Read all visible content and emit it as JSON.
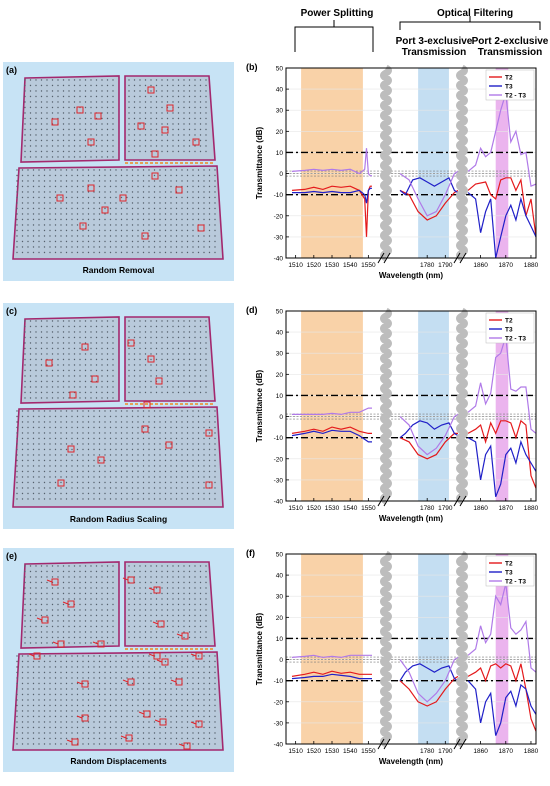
{
  "headers": {
    "power_splitting": "Power Splitting",
    "optical_filtering": "Optical Filtering",
    "port3_line1": "Port 3-exclusive",
    "port3_line2": "Transmission",
    "port2_line1": "Port 2-exclusive",
    "port2_line2": "Transmission"
  },
  "panels_left": [
    {
      "label": "(a)",
      "caption": "Random Removal"
    },
    {
      "label": "(c)",
      "caption": "Random Radius Scaling"
    },
    {
      "label": "(e)",
      "caption": "Random Displacements"
    }
  ],
  "panels_right": [
    {
      "label": "(b)"
    },
    {
      "label": "(d)"
    },
    {
      "label": "(f)"
    }
  ],
  "colors": {
    "left_bg": "#c7e3f5",
    "frame": "#a3286e",
    "orange_band": "#f9d2a8",
    "blue_band": "#c4def2",
    "pink_band": "#ebb4ee",
    "T2": "#e41a1c",
    "T3": "#2020c8",
    "T2_T3": "#b07ae8"
  },
  "chart_data": [
    {
      "type": "line",
      "panel": "(b)",
      "xlabel": "Wavelength (nm)",
      "ylabel": "Transmittance (dB)",
      "ylim": [
        -40,
        50
      ],
      "yticks": [
        -40,
        -30,
        -20,
        -10,
        0,
        10,
        20,
        30,
        40,
        50
      ],
      "xticks": [
        "1510",
        "1520",
        "1530",
        "1540",
        "1550",
        "1780",
        "1790",
        "1860",
        "1870",
        "1880"
      ],
      "x_segments": [
        [
          1508,
          1552
        ],
        [
          1765,
          1797
        ],
        [
          1855,
          1882
        ]
      ],
      "reference_lines": [
        10,
        -10
      ],
      "legend": [
        "T2",
        "T3",
        "T2 - T3"
      ],
      "series": [
        {
          "name": "T2",
          "x": [
            1508,
            1515,
            1520,
            1525,
            1530,
            1535,
            1540,
            1545,
            1548,
            1549,
            1550,
            1551,
            1552,
            1765,
            1770,
            1775,
            1780,
            1785,
            1790,
            1795,
            1797,
            1855,
            1858,
            1862,
            1864,
            1866,
            1868,
            1870,
            1872,
            1874,
            1876,
            1878,
            1880,
            1882
          ],
          "y": [
            -8,
            -7.5,
            -6.5,
            -7.5,
            -6,
            -6.5,
            -6,
            -8,
            -12,
            -30,
            -8,
            -6,
            -6,
            -8,
            -10,
            -18,
            -22,
            -20,
            -14,
            -9,
            -8,
            -8,
            -5,
            -4,
            -10,
            -12,
            -3,
            -2,
            -2,
            -8,
            -3,
            -20,
            -12,
            -30
          ]
        },
        {
          "name": "T3",
          "x": [
            1508,
            1515,
            1520,
            1525,
            1530,
            1535,
            1540,
            1545,
            1548,
            1549,
            1550,
            1551,
            1552,
            1765,
            1768,
            1772,
            1776,
            1780,
            1784,
            1788,
            1792,
            1795,
            1797,
            1855,
            1858,
            1860,
            1862,
            1864,
            1866,
            1868,
            1870,
            1872,
            1874,
            1876,
            1878,
            1880,
            1882
          ],
          "y": [
            -9,
            -9,
            -8.5,
            -9,
            -8.5,
            -9,
            -9,
            -8,
            -10,
            -14,
            -8,
            -7,
            -7,
            -8,
            -10,
            -3,
            -2,
            -4,
            -6,
            -4,
            -2,
            -8,
            -9,
            -9,
            -12,
            -28,
            -18,
            -12,
            -40,
            -30,
            -20,
            -15,
            -22,
            -12,
            -20,
            -25,
            -30
          ]
        },
        {
          "name": "T2 - T3",
          "x": [
            1508,
            1515,
            1520,
            1525,
            1530,
            1535,
            1540,
            1545,
            1548,
            1549,
            1550,
            1551,
            1552,
            1765,
            1770,
            1775,
            1780,
            1785,
            1790,
            1795,
            1797,
            1855,
            1858,
            1860,
            1862,
            1864,
            1866,
            1868,
            1870,
            1872,
            1874,
            1876,
            1878,
            1880,
            1882
          ],
          "y": [
            1,
            1.5,
            2,
            1.5,
            2,
            1.5,
            2,
            0,
            2,
            12,
            0,
            -1,
            -1,
            0,
            -3,
            -12,
            -20,
            -18,
            -10,
            0,
            1,
            1,
            4,
            12,
            8,
            10,
            20,
            30,
            38,
            15,
            20,
            9,
            10,
            -6,
            -5
          ]
        }
      ]
    },
    {
      "type": "line",
      "panel": "(d)",
      "xlabel": "Wavelength (nm)",
      "ylabel": "Transmittance (dB)",
      "ylim": [
        -40,
        50
      ],
      "yticks": [
        -40,
        -30,
        -20,
        -10,
        0,
        10,
        20,
        30,
        40,
        50
      ],
      "xticks": [
        "1510",
        "1520",
        "1530",
        "1540",
        "1550",
        "1780",
        "1790",
        "1860",
        "1870",
        "1880"
      ],
      "x_segments": [
        [
          1508,
          1552
        ],
        [
          1765,
          1797
        ],
        [
          1855,
          1882
        ]
      ],
      "reference_lines": [
        10,
        -10
      ],
      "legend": [
        "T2",
        "T3",
        "T2 - T3"
      ],
      "series": [
        {
          "name": "T2",
          "x": [
            1508,
            1515,
            1520,
            1525,
            1530,
            1535,
            1540,
            1545,
            1550,
            1552,
            1765,
            1770,
            1775,
            1780,
            1785,
            1790,
            1795,
            1797,
            1855,
            1858,
            1860,
            1862,
            1864,
            1866,
            1868,
            1870,
            1872,
            1874,
            1876,
            1878,
            1880,
            1882
          ],
          "y": [
            -8,
            -7,
            -6,
            -7,
            -5,
            -6,
            -5,
            -7,
            -8,
            -8,
            -10,
            -12,
            -18,
            -20,
            -18,
            -12,
            -8,
            -8,
            -8,
            -6,
            -4,
            -12,
            -3,
            -8,
            -2,
            -2,
            -3,
            -10,
            -2,
            -4,
            -28,
            -34
          ]
        },
        {
          "name": "T3",
          "x": [
            1508,
            1515,
            1520,
            1525,
            1530,
            1535,
            1540,
            1545,
            1550,
            1552,
            1765,
            1768,
            1772,
            1776,
            1780,
            1784,
            1788,
            1792,
            1795,
            1797,
            1855,
            1858,
            1860,
            1862,
            1864,
            1866,
            1868,
            1870,
            1872,
            1874,
            1876,
            1878,
            1880,
            1882
          ],
          "y": [
            -9,
            -8,
            -7,
            -8,
            -6.5,
            -7,
            -7,
            -9,
            -12,
            -12,
            -10,
            -8,
            -4,
            -2,
            -3,
            -6,
            -4,
            -3,
            -8,
            -9,
            -10,
            -12,
            -30,
            -18,
            -14,
            -38,
            -32,
            -18,
            -15,
            -22,
            -12,
            -18,
            -22,
            -26
          ]
        },
        {
          "name": "T2 - T3",
          "x": [
            1508,
            1515,
            1520,
            1525,
            1530,
            1535,
            1540,
            1545,
            1550,
            1552,
            1765,
            1770,
            1775,
            1780,
            1785,
            1790,
            1795,
            1797,
            1855,
            1858,
            1860,
            1862,
            1864,
            1866,
            1868,
            1870,
            1872,
            1874,
            1876,
            1878,
            1880,
            1882
          ],
          "y": [
            1,
            1,
            1,
            1,
            1.5,
            1,
            2,
            2,
            4,
            4,
            0,
            -4,
            -14,
            -18,
            -15,
            -9,
            0,
            1,
            2,
            5,
            16,
            6,
            11,
            28,
            30,
            38,
            13,
            12,
            14,
            14,
            -6,
            -8
          ]
        }
      ]
    },
    {
      "type": "line",
      "panel": "(f)",
      "xlabel": "Wavelength (nm)",
      "ylabel": "Transmittance (dB)",
      "ylim": [
        -40,
        50
      ],
      "yticks": [
        -40,
        -30,
        -20,
        -10,
        0,
        10,
        20,
        30,
        40,
        50
      ],
      "xticks": [
        "1510",
        "1520",
        "1530",
        "1540",
        "1550",
        "1780",
        "1790",
        "1860",
        "1870",
        "1880"
      ],
      "x_segments": [
        [
          1508,
          1552
        ],
        [
          1765,
          1797
        ],
        [
          1855,
          1882
        ]
      ],
      "reference_lines": [
        10,
        -10
      ],
      "legend": [
        "T2",
        "T3",
        "T2 - T3"
      ],
      "series": [
        {
          "name": "T2",
          "x": [
            1508,
            1515,
            1520,
            1525,
            1530,
            1535,
            1540,
            1545,
            1550,
            1552,
            1765,
            1770,
            1775,
            1780,
            1785,
            1790,
            1795,
            1797,
            1855,
            1858,
            1860,
            1862,
            1864,
            1866,
            1868,
            1870,
            1872,
            1874,
            1876,
            1878,
            1880,
            1882
          ],
          "y": [
            -8,
            -7,
            -6,
            -7,
            -5.5,
            -6.5,
            -6,
            -7,
            -7,
            -7,
            -10,
            -14,
            -20,
            -22,
            -20,
            -14,
            -9,
            -8,
            -8,
            -6,
            -4,
            -10,
            -3,
            -2,
            -4,
            -2,
            -3,
            -10,
            -2,
            -14,
            -28,
            -34
          ]
        },
        {
          "name": "T3",
          "x": [
            1508,
            1515,
            1520,
            1525,
            1530,
            1535,
            1540,
            1545,
            1550,
            1552,
            1765,
            1768,
            1772,
            1776,
            1780,
            1784,
            1788,
            1792,
            1795,
            1797,
            1855,
            1858,
            1860,
            1862,
            1864,
            1866,
            1868,
            1870,
            1872,
            1874,
            1876,
            1878,
            1880,
            1882
          ],
          "y": [
            -9,
            -8.5,
            -8,
            -8,
            -7,
            -7.5,
            -8,
            -9,
            -9,
            -9,
            -10,
            -6,
            -3,
            -2,
            -4,
            -6,
            -4,
            -3,
            -9,
            -10,
            -10,
            -14,
            -30,
            -20,
            -16,
            -36,
            -30,
            -18,
            -15,
            -22,
            -12,
            -14,
            -22,
            -26
          ]
        },
        {
          "name": "T2 - T3",
          "x": [
            1508,
            1515,
            1520,
            1525,
            1530,
            1535,
            1540,
            1545,
            1550,
            1552,
            1765,
            1770,
            1775,
            1780,
            1785,
            1790,
            1795,
            1797,
            1855,
            1858,
            1860,
            1862,
            1864,
            1866,
            1868,
            1870,
            1872,
            1874,
            1876,
            1878,
            1880,
            1882
          ],
          "y": [
            1,
            1.5,
            2,
            1,
            1.5,
            1,
            2,
            2,
            2,
            2,
            0,
            -6,
            -16,
            -20,
            -16,
            -10,
            0,
            1,
            2,
            5,
            16,
            8,
            12,
            30,
            26,
            36,
            15,
            12,
            14,
            18,
            -4,
            -6
          ]
        }
      ]
    }
  ]
}
